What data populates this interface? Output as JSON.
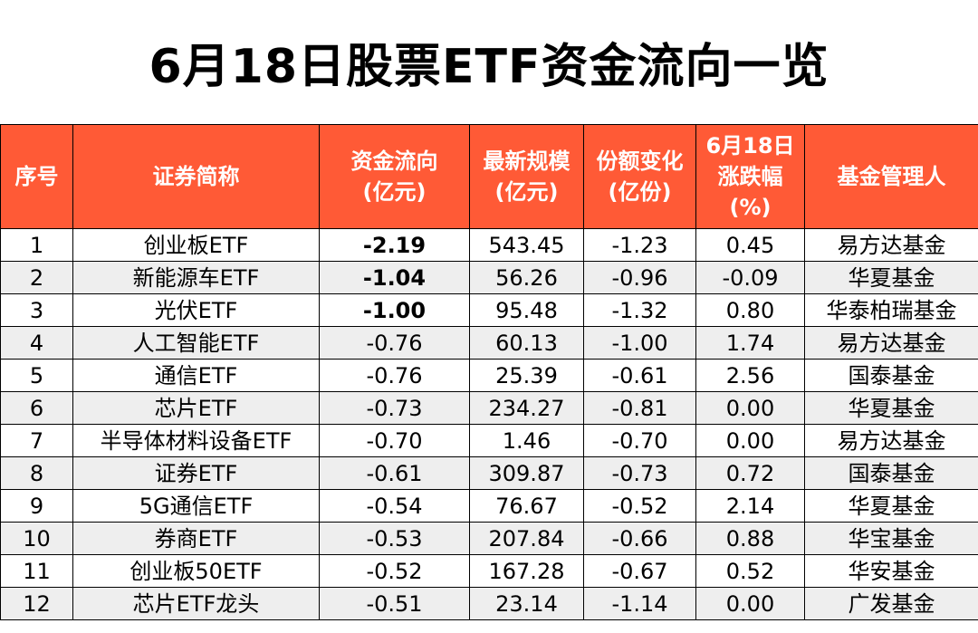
{
  "title": "6月18日股票ETF资金流向一览",
  "table": {
    "headers": [
      {
        "line1": "序号",
        "line2": "",
        "line3": ""
      },
      {
        "line1": "证券简称",
        "line2": "",
        "line3": ""
      },
      {
        "line1": "资金流向",
        "line2": "(亿元)",
        "line3": ""
      },
      {
        "line1": "最新规模",
        "line2": "(亿元)",
        "line3": ""
      },
      {
        "line1": "份额变化",
        "line2": "(亿份)",
        "line3": ""
      },
      {
        "line1": "6月18日",
        "line2": "涨跌幅",
        "line3": "(%)"
      },
      {
        "line1": "基金管理人",
        "line2": "",
        "line3": ""
      }
    ],
    "rows": [
      {
        "no": "1",
        "name": "创业板ETF",
        "flow": "-2.19",
        "scale": "543.45",
        "share": "-1.23",
        "chg": "0.45",
        "mgr": "易方达基金"
      },
      {
        "no": "2",
        "name": "新能源车ETF",
        "flow": "-1.04",
        "scale": "56.26",
        "share": "-0.96",
        "chg": "-0.09",
        "mgr": "华夏基金"
      },
      {
        "no": "3",
        "name": "光伏ETF",
        "flow": "-1.00",
        "scale": "95.48",
        "share": "-1.32",
        "chg": "0.80",
        "mgr": "华泰柏瑞基金"
      },
      {
        "no": "4",
        "name": "人工智能ETF",
        "flow": "-0.76",
        "scale": "60.13",
        "share": "-1.00",
        "chg": "1.74",
        "mgr": "易方达基金"
      },
      {
        "no": "5",
        "name": "通信ETF",
        "flow": "-0.76",
        "scale": "25.39",
        "share": "-0.61",
        "chg": "2.56",
        "mgr": "国泰基金"
      },
      {
        "no": "6",
        "name": "芯片ETF",
        "flow": "-0.73",
        "scale": "234.27",
        "share": "-0.81",
        "chg": "0.00",
        "mgr": "华夏基金"
      },
      {
        "no": "7",
        "name": "半导体材料设备ETF",
        "flow": "-0.70",
        "scale": "1.46",
        "share": "-0.70",
        "chg": "0.00",
        "mgr": "易方达基金"
      },
      {
        "no": "8",
        "name": "证券ETF",
        "flow": "-0.61",
        "scale": "309.87",
        "share": "-0.73",
        "chg": "0.72",
        "mgr": "国泰基金"
      },
      {
        "no": "9",
        "name": "5G通信ETF",
        "flow": "-0.54",
        "scale": "76.67",
        "share": "-0.52",
        "chg": "2.14",
        "mgr": "华夏基金"
      },
      {
        "no": "10",
        "name": "券商ETF",
        "flow": "-0.53",
        "scale": "207.84",
        "share": "-0.66",
        "chg": "0.88",
        "mgr": "华宝基金"
      },
      {
        "no": "11",
        "name": "创业板50ETF",
        "flow": "-0.52",
        "scale": "167.28",
        "share": "-0.67",
        "chg": "0.52",
        "mgr": "华安基金"
      },
      {
        "no": "12",
        "name": "芯片ETF龙头",
        "flow": "-0.51",
        "scale": "23.14",
        "share": "-1.14",
        "chg": "0.00",
        "mgr": "广发基金"
      }
    ],
    "highlight_rows": 3,
    "colors": {
      "header_bg": "#ff5a36",
      "header_text": "#ffffff",
      "highlight_text": "#1fa83a",
      "alt_row_bg": "#eeeeee"
    }
  }
}
